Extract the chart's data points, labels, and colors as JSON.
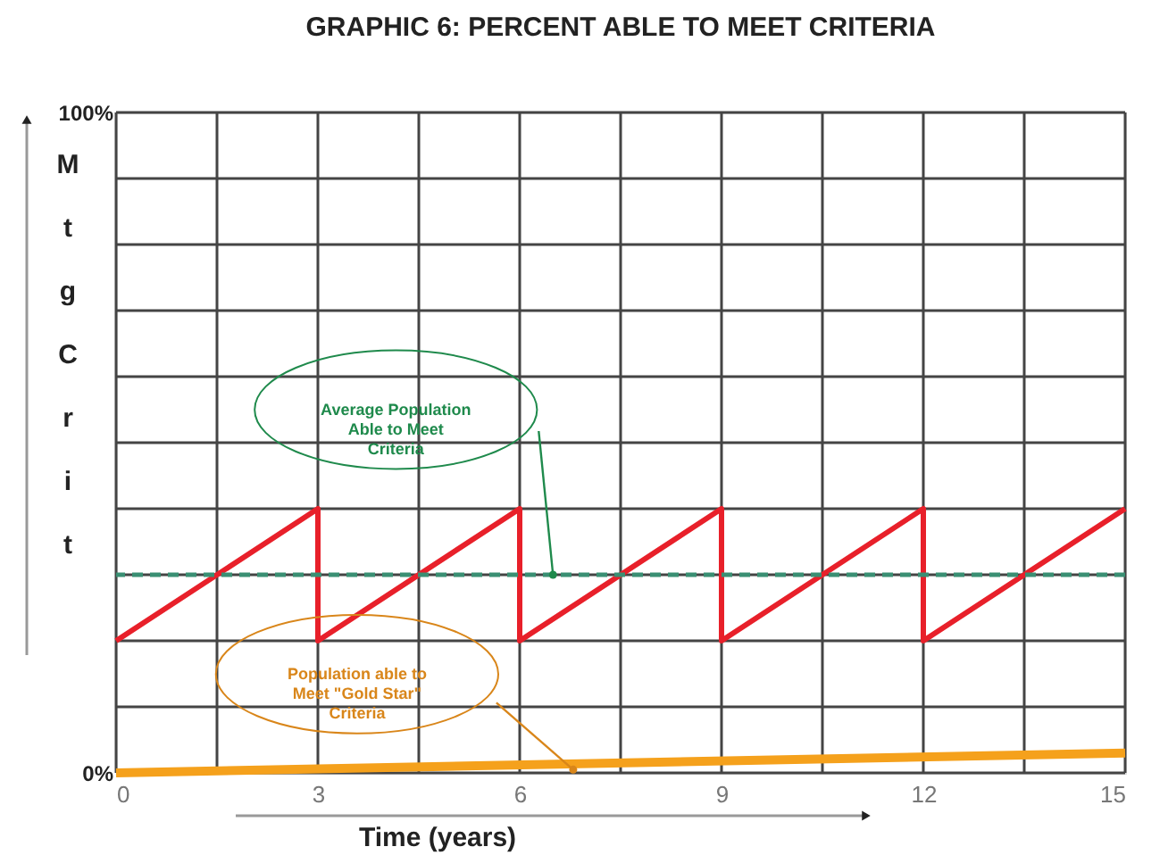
{
  "chart_data": {
    "type": "line",
    "title": "GRAPHIC 6: PERCENT ABLE TO MEET CRITERIA",
    "xlabel": "Time (years)",
    "ylabel": "Mtg Crit",
    "x": [
      0,
      3,
      3,
      6,
      6,
      9,
      9,
      12,
      12,
      15
    ],
    "series": [
      {
        "color": "#e8202a",
        "values": [
          20,
          40,
          20,
          40,
          20,
          40,
          20,
          40,
          20,
          40
        ]
      },
      {
        "color": "#f5a11c",
        "x": [
          0,
          15
        ],
        "values": [
          0,
          3
        ]
      }
    ],
    "ref_lines": [
      {
        "axis": "y",
        "value": 30,
        "color": "#3a8f73",
        "line_style": "dashed"
      }
    ],
    "annotations": [
      "Average Population Able to Meet Criteria",
      "Population able to Meet \"Gold Star\" Criteria"
    ],
    "xlim": [
      0,
      15
    ],
    "xticks": [
      0,
      {
        "value": 1.5,
        "label": null
      },
      3,
      {
        "value": 4.5,
        "label": null
      },
      6,
      {
        "value": 7.5,
        "label": null
      },
      9,
      {
        "value": 10.5,
        "label": null
      },
      12,
      {
        "value": 13.5,
        "label": null
      },
      15
    ],
    "ylim": [
      0,
      100
    ],
    "yticks": [
      {
        "value": 0,
        "label": "0%"
      },
      {
        "value": 10,
        "label": null
      },
      {
        "value": 20,
        "label": null
      },
      {
        "value": 30,
        "label": null
      },
      {
        "value": 40,
        "label": null
      },
      {
        "value": 50,
        "label": null
      },
      {
        "value": 60,
        "label": null
      },
      {
        "value": 70,
        "label": null
      },
      {
        "value": 80,
        "label": null
      },
      {
        "value": 90,
        "label": null
      },
      {
        "value": 100,
        "label": "100%"
      }
    ],
    "grid": true,
    "marker": "none",
    "line_style": "solid"
  }
}
